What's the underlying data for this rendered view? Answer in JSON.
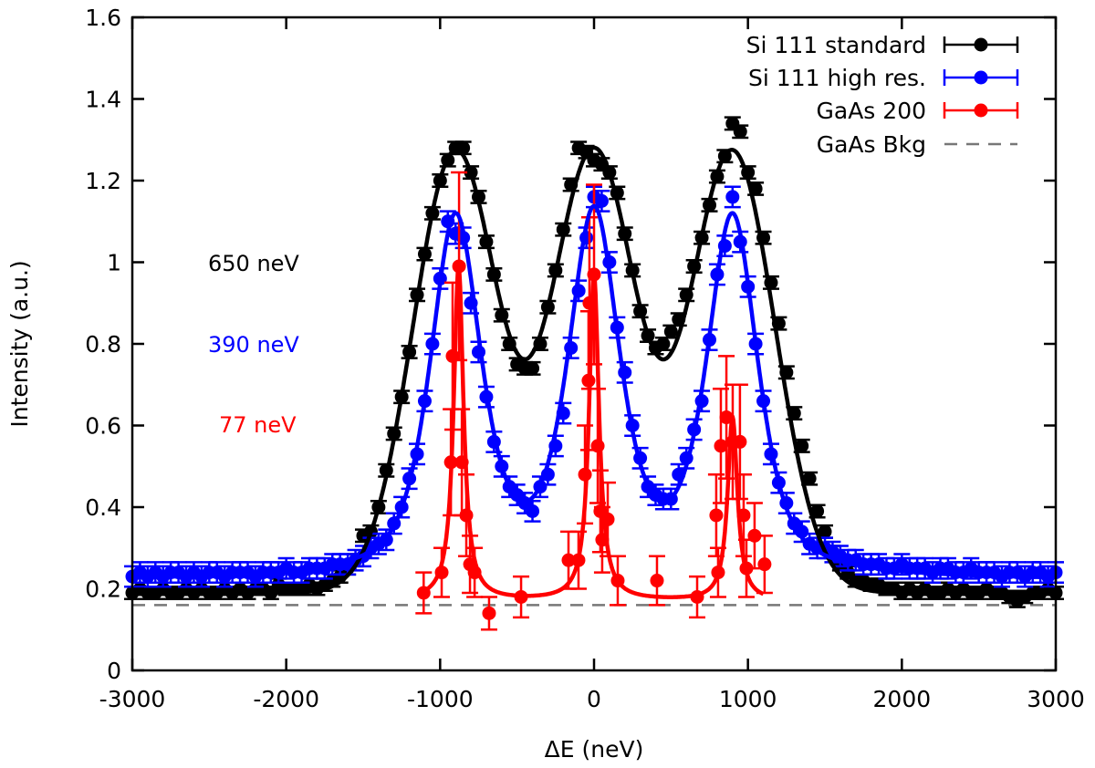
{
  "chart_data": {
    "type": "scatter",
    "title": "",
    "xlabel": "ΔE (neV)",
    "ylabel": "Intensity (a.u.)",
    "xlim": [
      -3000,
      3000
    ],
    "ylim": [
      0,
      1.6
    ],
    "grid": false,
    "legend_placement": "top-right",
    "x_ticks": [
      "-3000",
      "-2000",
      "-1000",
      "0",
      "1000",
      "2000",
      "3000"
    ],
    "x_tick_values": [
      -3000,
      -2000,
      -1000,
      0,
      1000,
      2000,
      3000
    ],
    "y_ticks": [
      "0",
      "0.2",
      "0.4",
      "0.6",
      "0.8",
      "1",
      "1.2",
      "1.4",
      "1.6"
    ],
    "y_tick_values": [
      0,
      0.2,
      0.4,
      0.6,
      0.8,
      1.0,
      1.2,
      1.4,
      1.6
    ],
    "series": [
      {
        "name": "Si 111 standard",
        "color": "#000000",
        "x_start": -3000,
        "x_step": 50,
        "y": [
          0.19,
          0.2,
          0.19,
          0.19,
          0.2,
          0.19,
          0.19,
          0.2,
          0.19,
          0.2,
          0.19,
          0.19,
          0.2,
          0.19,
          0.2,
          0.19,
          0.2,
          0.2,
          0.19,
          0.21,
          0.2,
          0.2,
          0.2,
          0.21,
          0.2,
          0.21,
          0.22,
          0.23,
          0.25,
          0.27,
          0.33,
          0.34,
          0.4,
          0.49,
          0.58,
          0.67,
          0.78,
          0.92,
          1.02,
          1.12,
          1.2,
          1.25,
          1.28,
          1.28,
          1.22,
          1.16,
          1.05,
          0.97,
          0.87,
          0.8,
          0.75,
          0.74,
          0.74,
          0.8,
          0.89,
          0.98,
          1.08,
          1.19,
          1.28,
          1.27,
          1.25,
          1.24,
          1.22,
          1.17,
          1.07,
          0.98,
          0.88,
          0.82,
          0.79,
          0.8,
          0.83,
          0.86,
          0.92,
          0.99,
          1.06,
          1.14,
          1.21,
          1.26,
          1.34,
          1.32,
          1.22,
          1.18,
          1.06,
          0.95,
          0.85,
          0.73,
          0.63,
          0.55,
          0.47,
          0.39,
          0.34,
          0.29,
          0.26,
          0.24,
          0.22,
          0.22,
          0.21,
          0.21,
          0.2,
          0.2,
          0.19,
          0.2,
          0.19,
          0.2,
          0.19,
          0.19,
          0.2,
          0.19,
          0.2,
          0.19,
          0.19,
          0.2,
          0.19,
          0.19,
          0.18,
          0.17,
          0.18,
          0.19,
          0.19,
          0.2,
          0.19
        ],
        "error": 0.015,
        "fit": {
          "model": "gaussian",
          "background": 0.19,
          "centers": [
            -900,
            0,
            900
          ],
          "amplitude": 1.08,
          "fwhm": 650,
          "range": [
            -3000,
            3000
          ]
        },
        "annotation": "650 neV"
      },
      {
        "name": "Si 111 high res.",
        "color": "#0000ff",
        "x_start": -3000,
        "x_step": 50,
        "y": [
          0.23,
          0.24,
          0.23,
          0.24,
          0.23,
          0.24,
          0.24,
          0.23,
          0.24,
          0.23,
          0.24,
          0.24,
          0.23,
          0.24,
          0.24,
          0.24,
          0.23,
          0.24,
          0.24,
          0.24,
          0.25,
          0.24,
          0.24,
          0.25,
          0.25,
          0.25,
          0.26,
          0.26,
          0.26,
          0.27,
          0.28,
          0.3,
          0.31,
          0.32,
          0.36,
          0.4,
          0.47,
          0.53,
          0.66,
          0.8,
          0.96,
          1.1,
          1.07,
          1.06,
          0.9,
          0.78,
          0.67,
          0.56,
          0.5,
          0.45,
          0.43,
          0.41,
          0.39,
          0.45,
          0.48,
          0.55,
          0.63,
          0.79,
          0.93,
          1.06,
          1.16,
          1.15,
          1.0,
          0.84,
          0.73,
          0.6,
          0.52,
          0.45,
          0.43,
          0.42,
          0.42,
          0.48,
          0.52,
          0.59,
          0.66,
          0.81,
          0.97,
          1.04,
          1.16,
          1.05,
          0.94,
          0.8,
          0.66,
          0.53,
          0.46,
          0.41,
          0.36,
          0.34,
          0.31,
          0.3,
          0.3,
          0.29,
          0.28,
          0.27,
          0.27,
          0.26,
          0.26,
          0.26,
          0.25,
          0.25,
          0.26,
          0.25,
          0.25,
          0.25,
          0.24,
          0.25,
          0.25,
          0.24,
          0.24,
          0.25,
          0.24,
          0.24,
          0.24,
          0.23,
          0.24,
          0.24,
          0.23,
          0.24,
          0.24,
          0.23,
          0.24
        ],
        "error": 0.025,
        "fit": {
          "model": "pseudo-voigt",
          "background": 0.22,
          "centers": [
            -900,
            0,
            900
          ],
          "amplitude": 0.871,
          "fwhm": 390,
          "lorentz_fraction": 0.6,
          "range": [
            -3000,
            3000
          ]
        },
        "annotation": "390 neV"
      },
      {
        "name": "GaAs 200",
        "color": "#ff0000",
        "x": [
          -1107,
          -990,
          -930,
          -919,
          -877,
          -859,
          -830,
          -806,
          -776,
          -682,
          -474,
          -166,
          -101,
          -59,
          -36,
          -30,
          0,
          24,
          41,
          53,
          89,
          154,
          409,
          670,
          794,
          806,
          824,
          860,
          901,
          948,
          972,
          990,
          1043,
          1108
        ],
        "y": [
          0.19,
          0.24,
          0.51,
          0.77,
          0.99,
          0.51,
          0.38,
          0.26,
          0.24,
          0.14,
          0.18,
          0.27,
          0.27,
          0.48,
          0.71,
          0.9,
          0.97,
          0.55,
          0.39,
          0.32,
          0.37,
          0.22,
          0.22,
          0.18,
          0.38,
          0.24,
          0.55,
          0.62,
          0.56,
          0.56,
          0.38,
          0.25,
          0.33,
          0.26
        ],
        "errors": [
          0.05,
          0.06,
          0.13,
          0.18,
          0.23,
          0.13,
          0.1,
          0.07,
          0.06,
          0.04,
          0.05,
          0.07,
          0.07,
          0.12,
          0.17,
          0.21,
          0.22,
          0.14,
          0.1,
          0.08,
          0.09,
          0.06,
          0.06,
          0.05,
          0.1,
          0.06,
          0.14,
          0.15,
          0.14,
          0.14,
          0.1,
          0.07,
          0.08,
          0.07
        ],
        "fit": {
          "model": "lorentzian",
          "background": 0.17,
          "centers": [
            -880,
            0,
            900
          ],
          "amplitudes": [
            0.82,
            0.8,
            0.45
          ],
          "fwhm": 77,
          "range": [
            -1100,
            1100
          ]
        },
        "annotation": "77 neV"
      }
    ],
    "background_line": {
      "name": "GaAs Bkg",
      "y": 0.16,
      "color": "#777777",
      "style": "dashed"
    }
  }
}
